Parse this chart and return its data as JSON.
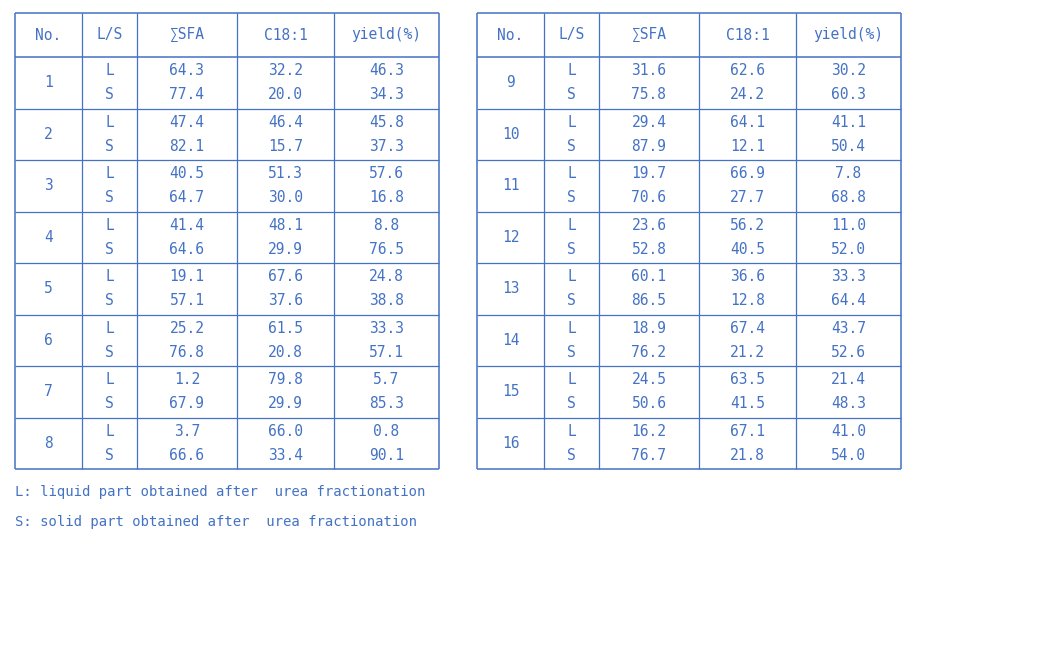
{
  "headers": [
    "No.",
    "L/S",
    "∑SFA",
    "C18:1",
    "yield(%)"
  ],
  "left_table": [
    {
      "no": "1",
      "rows": [
        [
          "L",
          "64.3",
          "32.2",
          "46.3"
        ],
        [
          "S",
          "77.4",
          "20.0",
          "34.3"
        ]
      ]
    },
    {
      "no": "2",
      "rows": [
        [
          "L",
          "47.4",
          "46.4",
          "45.8"
        ],
        [
          "S",
          "82.1",
          "15.7",
          "37.3"
        ]
      ]
    },
    {
      "no": "3",
      "rows": [
        [
          "L",
          "40.5",
          "51.3",
          "57.6"
        ],
        [
          "S",
          "64.7",
          "30.0",
          "16.8"
        ]
      ]
    },
    {
      "no": "4",
      "rows": [
        [
          "L",
          "41.4",
          "48.1",
          "8.8"
        ],
        [
          "S",
          "64.6",
          "29.9",
          "76.5"
        ]
      ]
    },
    {
      "no": "5",
      "rows": [
        [
          "L",
          "19.1",
          "67.6",
          "24.8"
        ],
        [
          "S",
          "57.1",
          "37.6",
          "38.8"
        ]
      ]
    },
    {
      "no": "6",
      "rows": [
        [
          "L",
          "25.2",
          "61.5",
          "33.3"
        ],
        [
          "S",
          "76.8",
          "20.8",
          "57.1"
        ]
      ]
    },
    {
      "no": "7",
      "rows": [
        [
          "L",
          "1.2",
          "79.8",
          "5.7"
        ],
        [
          "S",
          "67.9",
          "29.9",
          "85.3"
        ]
      ]
    },
    {
      "no": "8",
      "rows": [
        [
          "L",
          "3.7",
          "66.0",
          "0.8"
        ],
        [
          "S",
          "66.6",
          "33.4",
          "90.1"
        ]
      ]
    }
  ],
  "right_table": [
    {
      "no": "9",
      "rows": [
        [
          "L",
          "31.6",
          "62.6",
          "30.2"
        ],
        [
          "S",
          "75.8",
          "24.2",
          "60.3"
        ]
      ]
    },
    {
      "no": "10",
      "rows": [
        [
          "L",
          "29.4",
          "64.1",
          "41.1"
        ],
        [
          "S",
          "87.9",
          "12.1",
          "50.4"
        ]
      ]
    },
    {
      "no": "11",
      "rows": [
        [
          "L",
          "19.7",
          "66.9",
          "7.8"
        ],
        [
          "S",
          "70.6",
          "27.7",
          "68.8"
        ]
      ]
    },
    {
      "no": "12",
      "rows": [
        [
          "L",
          "23.6",
          "56.2",
          "11.0"
        ],
        [
          "S",
          "52.8",
          "40.5",
          "52.0"
        ]
      ]
    },
    {
      "no": "13",
      "rows": [
        [
          "L",
          "60.1",
          "36.6",
          "33.3"
        ],
        [
          "S",
          "86.5",
          "12.8",
          "64.4"
        ]
      ]
    },
    {
      "no": "14",
      "rows": [
        [
          "L",
          "18.9",
          "67.4",
          "43.7"
        ],
        [
          "S",
          "76.2",
          "21.2",
          "52.6"
        ]
      ]
    },
    {
      "no": "15",
      "rows": [
        [
          "L",
          "24.5",
          "63.5",
          "21.4"
        ],
        [
          "S",
          "50.6",
          "41.5",
          "48.3"
        ]
      ]
    },
    {
      "no": "16",
      "rows": [
        [
          "L",
          "16.2",
          "67.1",
          "41.0"
        ],
        [
          "S",
          "76.7",
          "21.8",
          "54.0"
        ]
      ]
    }
  ],
  "footnotes": [
    "L: liquid part obtained after  urea fractionation",
    "S: solid part obtained after  urea fractionation"
  ],
  "text_color": "#4472C4",
  "line_color": "#4472C4",
  "font_size": 10.5,
  "header_font_size": 10.5,
  "fig_width": 10.59,
  "fig_height": 6.61,
  "dpi": 100
}
